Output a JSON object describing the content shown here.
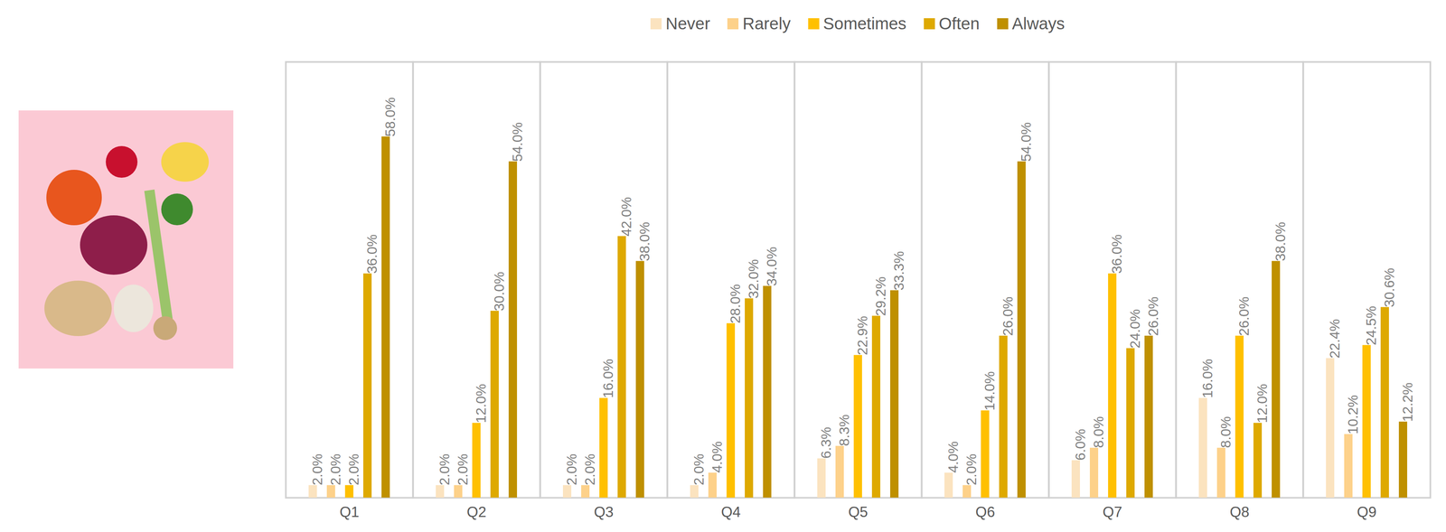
{
  "chart_data": {
    "type": "bar",
    "categories": [
      "Q1",
      "Q2",
      "Q3",
      "Q4",
      "Q5",
      "Q6",
      "Q7",
      "Q8",
      "Q9"
    ],
    "series": [
      {
        "name": "Never",
        "color": "#fbe3bf",
        "values": [
          2.0,
          2.0,
          2.0,
          2.0,
          6.3,
          4.0,
          6.0,
          16.0,
          22.4
        ],
        "value_labels": [
          "2.0%",
          "2.0%",
          "2.0%",
          "2.0%",
          "6.3%",
          "4.0%",
          "6.0%",
          "16.0%",
          "22.4%"
        ]
      },
      {
        "name": "Rarely",
        "color": "#fdd18a",
        "values": [
          2.0,
          2.0,
          2.0,
          4.0,
          8.3,
          2.0,
          8.0,
          8.0,
          10.2
        ],
        "value_labels": [
          "2.0%",
          "2.0%",
          "2.0%",
          "4.0%",
          "8.3%",
          "2.0%",
          "8.0%",
          "8.0%",
          "10.2%"
        ]
      },
      {
        "name": "Sometimes",
        "color": "#ffc000",
        "values": [
          2.0,
          12.0,
          16.0,
          28.0,
          22.9,
          14.0,
          36.0,
          26.0,
          24.5
        ],
        "value_labels": [
          "2.0%",
          "12.0%",
          "16.0%",
          "28.0%",
          "22.9%",
          "14.0%",
          "36.0%",
          "26.0%",
          "24.5%"
        ]
      },
      {
        "name": "Often",
        "color": "#dea900",
        "values": [
          36.0,
          30.0,
          42.0,
          32.0,
          29.2,
          26.0,
          24.0,
          12.0,
          30.6
        ],
        "value_labels": [
          "36.0%",
          "30.0%",
          "42.0%",
          "32.0%",
          "29.2%",
          "26.0%",
          "24.0%",
          "12.0%",
          "30.6%"
        ]
      },
      {
        "name": "Always",
        "color": "#bf9000",
        "values": [
          58.0,
          54.0,
          38.0,
          34.0,
          33.3,
          54.0,
          26.0,
          38.0,
          12.2
        ],
        "value_labels": [
          "58.0%",
          "54.0%",
          "38.0%",
          "34.0%",
          "33.3%",
          "54.0%",
          "26.0%",
          "38.0%",
          "12.2%"
        ]
      }
    ],
    "ylim": [
      0,
      70
    ],
    "data_labels": true,
    "tick_labels": "x",
    "legend": "top",
    "grid": false
  }
}
